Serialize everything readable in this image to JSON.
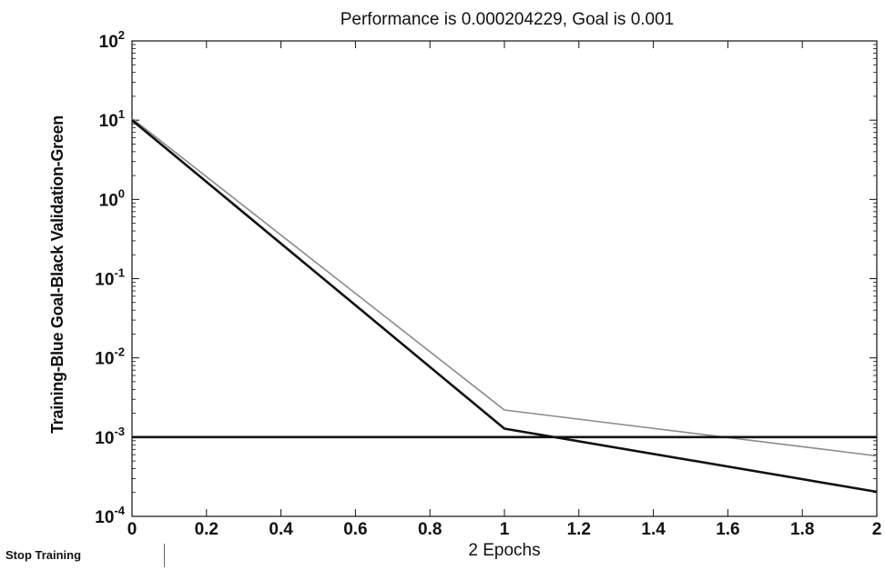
{
  "chart_data": {
    "type": "line",
    "title": "Performance is 0.000204229, Goal is 0.001",
    "xlabel": "2 Epochs",
    "ylabel": "Training-Blue  Goal-Black  Validation-Green",
    "xlim": [
      0,
      2
    ],
    "ylim": [
      0.0001,
      100
    ],
    "yscale": "log",
    "x_ticks": [
      "0",
      "0.2",
      "0.4",
      "0.6",
      "0.8",
      "1",
      "1.2",
      "1.4",
      "1.6",
      "1.8",
      "2"
    ],
    "y_ticks": [
      {
        "base": "10",
        "exp": "2"
      },
      {
        "base": "10",
        "exp": "1"
      },
      {
        "base": "10",
        "exp": "0"
      },
      {
        "base": "10",
        "exp": "-1"
      },
      {
        "base": "10",
        "exp": "-2"
      },
      {
        "base": "10",
        "exp": "-3"
      },
      {
        "base": "10",
        "exp": "-4"
      }
    ],
    "grid": false,
    "series": [
      {
        "x": [
          0,
          1,
          2
        ],
        "values": [
          10.5,
          0.0022,
          0.00058
        ],
        "color": "#8a8a8a",
        "width": 1.6
      },
      {
        "x": [
          0,
          1,
          2
        ],
        "values": [
          10.0,
          0.00128,
          0.000204229
        ],
        "color": "#111111",
        "width": 2.6
      },
      {
        "x": [
          0,
          2
        ],
        "values": [
          0.001,
          0.001
        ],
        "color": "#111111",
        "width": 2.6
      }
    ]
  },
  "controls": {
    "stop_label": "Stop Training"
  }
}
